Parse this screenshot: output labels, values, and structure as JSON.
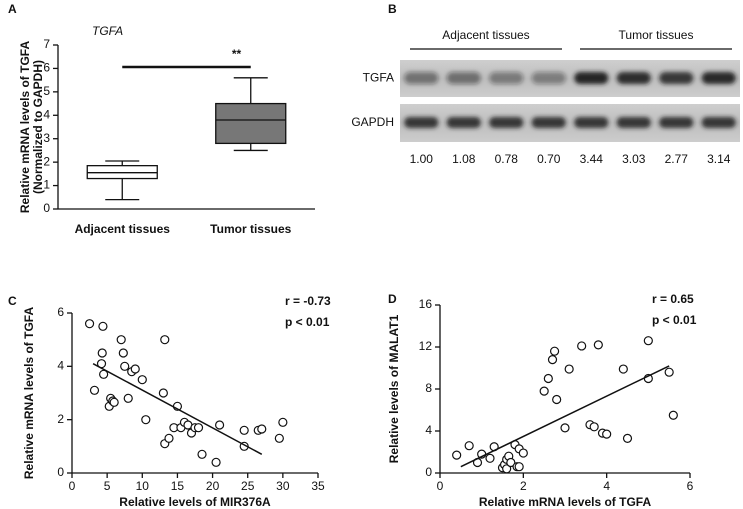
{
  "chart_data": [
    {
      "type": "box",
      "panel": "A",
      "title": "TGFA",
      "ylabel": [
        "Relative mRNA levels of TGFA",
        "(Normalized to GAPDH)"
      ],
      "categories": [
        "Adjacent tissues",
        "Tumor tissues"
      ],
      "boxes": [
        {
          "min": 0.4,
          "q1": 1.3,
          "median": 1.55,
          "q3": 1.85,
          "max": 2.05,
          "color": "#ffffff"
        },
        {
          "min": 2.5,
          "q1": 2.8,
          "median": 3.8,
          "q3": 4.5,
          "max": 5.6,
          "color": "#777777"
        }
      ],
      "ylim": [
        0,
        7
      ],
      "yticks": [
        0,
        1,
        2,
        3,
        4,
        5,
        6,
        7
      ],
      "annotation": "**"
    },
    {
      "type": "blot",
      "panel": "B",
      "groups": [
        "Adjacent tissues",
        "Tumor tissues"
      ],
      "rows": [
        "TGFA",
        "GAPDH"
      ],
      "values": [
        1.0,
        1.08,
        0.78,
        0.7,
        3.44,
        3.03,
        2.77,
        3.14
      ],
      "value_labels": [
        "1.00",
        "1.08",
        "0.78",
        "0.70",
        "3.44",
        "3.03",
        "2.77",
        "3.14"
      ]
    },
    {
      "type": "scatter",
      "panel": "C",
      "xlabel": "Relative levels of MIR376A",
      "ylabel": "Relative mRNA levels of TGFA",
      "x": [
        2.5,
        3.2,
        4.2,
        4.3,
        4.4,
        4.5,
        5.3,
        5.5,
        5.8,
        6,
        7,
        7.3,
        7.5,
        8,
        8.5,
        9,
        10,
        10.5,
        13,
        13.2,
        13.2,
        13.8,
        14.5,
        15,
        15.5,
        16,
        16.5,
        17,
        17.5,
        18,
        18.5,
        20.5,
        21,
        24.5,
        24.5,
        26.5,
        27,
        29.5,
        30
      ],
      "y": [
        5.6,
        3.1,
        4.1,
        4.5,
        5.5,
        3.7,
        2.5,
        2.8,
        2.7,
        2.65,
        5.0,
        4.5,
        4.0,
        2.8,
        3.8,
        3.9,
        3.5,
        2.0,
        3.0,
        5.0,
        1.1,
        1.3,
        1.7,
        2.5,
        1.7,
        1.9,
        1.8,
        1.5,
        1.7,
        1.7,
        0.7,
        0.4,
        1.8,
        1.0,
        1.6,
        1.6,
        1.65,
        1.3,
        1.9
      ],
      "trendline": {
        "x": [
          3,
          27
        ],
        "y": [
          4.1,
          0.7
        ]
      },
      "xlim": [
        0,
        35
      ],
      "xticks": [
        0,
        5,
        10,
        15,
        20,
        25,
        30,
        35
      ],
      "ylim": [
        0,
        6
      ],
      "yticks": [
        0,
        2,
        4,
        6
      ],
      "annotations": [
        "r = -0.73",
        "p < 0.01"
      ]
    },
    {
      "type": "scatter",
      "panel": "D",
      "xlabel": "Relative mRNA levels of TGFA",
      "ylabel": "Relative levels of MALAT1",
      "x": [
        0.4,
        0.7,
        0.9,
        1.0,
        1.2,
        1.3,
        1.5,
        1.55,
        1.6,
        1.6,
        1.65,
        1.7,
        1.8,
        1.85,
        1.9,
        1.9,
        2.0,
        2.5,
        2.6,
        2.7,
        2.75,
        2.8,
        3.0,
        3.1,
        3.4,
        3.6,
        3.7,
        3.8,
        3.9,
        4.0,
        4.4,
        4.5,
        5.0,
        5.0,
        5.5,
        5.6
      ],
      "y": [
        1.7,
        2.6,
        1.0,
        1.8,
        1.4,
        2.5,
        0.5,
        0.8,
        1.3,
        0.4,
        1.6,
        1.0,
        2.7,
        0.6,
        2.3,
        0.6,
        1.9,
        7.8,
        9.0,
        10.8,
        11.6,
        7.0,
        4.3,
        9.9,
        12.1,
        4.6,
        4.4,
        12.2,
        3.8,
        3.7,
        9.9,
        3.3,
        12.6,
        9.0,
        9.6,
        5.5
      ],
      "trendline": {
        "x": [
          0.5,
          5.5
        ],
        "y": [
          0.6,
          10.2
        ]
      },
      "xlim": [
        0,
        6
      ],
      "xticks": [
        0,
        2,
        4,
        6
      ],
      "ylim": [
        0,
        16
      ],
      "yticks": [
        0,
        4,
        8,
        12,
        16
      ],
      "annotations": [
        "r = 0.65",
        "p < 0.01"
      ]
    }
  ]
}
